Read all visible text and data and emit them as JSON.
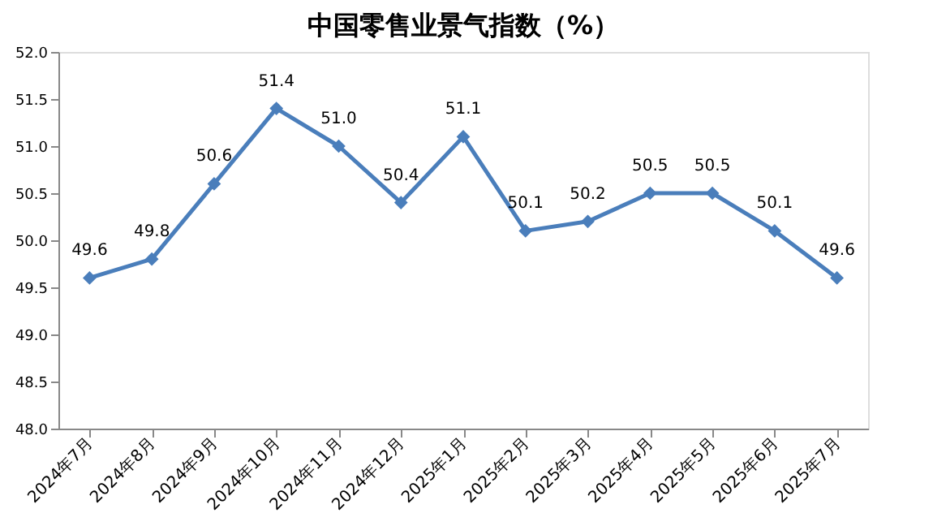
{
  "chart_data": {
    "type": "line",
    "title": "中国零售业景气指数（%）",
    "categories": [
      "2024年7月",
      "2024年8月",
      "2024年9月",
      "2024年10月",
      "2024年11月",
      "2024年12月",
      "2025年1月",
      "2025年2月",
      "2025年3月",
      "2025年4月",
      "2025年5月",
      "2025年6月",
      "2025年7月"
    ],
    "series": [
      {
        "color": "#4a7ebb",
        "values": [
          49.6,
          49.8,
          50.6,
          51.4,
          51.0,
          50.4,
          51.1,
          50.1,
          50.2,
          50.5,
          50.5,
          50.1,
          49.6
        ],
        "value_labels": [
          "49.6",
          "49.8",
          "50.6",
          "51.4",
          "51.0",
          "50.4",
          "51.1",
          "50.1",
          "50.2",
          "50.5",
          "50.5",
          "50.1",
          "49.6"
        ]
      }
    ],
    "ylim": [
      48,
      52
    ],
    "yticks": [
      {
        "value": 48,
        "label": "48.0"
      },
      48.5,
      {
        "value": 49,
        "label": "49.0"
      },
      49.5,
      {
        "value": 50,
        "label": "50.0"
      },
      50.5,
      {
        "value": 51,
        "label": "51.0"
      },
      51.5,
      {
        "value": 52,
        "label": "52.0"
      }
    ],
    "marker": "diamond",
    "line_style": "solid",
    "grid": false
  }
}
